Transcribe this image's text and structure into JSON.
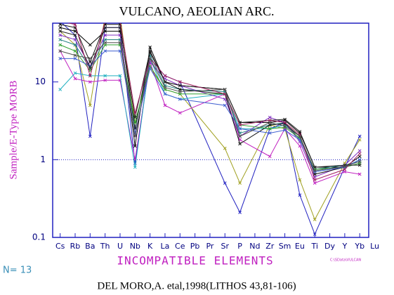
{
  "chart_data": {
    "type": "line",
    "title": "VULCANO, AEOLIAN ARC.",
    "ylabel": "Sample/E-Type MORB",
    "xlabel": "INCOMPATIBLE ELEMENTS",
    "log_y": true,
    "ylim": [
      0.1,
      57
    ],
    "yticks": [
      10,
      1,
      0.1
    ],
    "reference_line": 1,
    "xlim": [
      -0.5,
      20.6
    ],
    "xticks": [
      {
        "value": 0,
        "label": "Cs"
      },
      {
        "value": 1,
        "label": "Rb"
      },
      {
        "value": 2,
        "label": "Ba"
      },
      {
        "value": 3,
        "label": "Th"
      },
      {
        "value": 4,
        "label": "U"
      },
      {
        "value": 5,
        "label": "Nb"
      },
      {
        "value": 6,
        "label": "K"
      },
      {
        "value": 7,
        "label": "La"
      },
      {
        "value": 8,
        "label": "Ce"
      },
      {
        "value": 9,
        "label": "Pb"
      },
      {
        "value": 10,
        "label": "Pr"
      },
      {
        "value": 11,
        "label": "Sr"
      },
      {
        "value": 12,
        "label": "P"
      },
      {
        "value": 13,
        "label": "Nd"
      },
      {
        "value": 14,
        "label": "Zr"
      },
      {
        "value": 15,
        "label": "Sm"
      },
      {
        "value": 16,
        "label": "Eu"
      },
      {
        "value": 17,
        "label": "Ti"
      },
      {
        "value": 18,
        "label": "Dy"
      },
      {
        "value": 19,
        "label": "Y"
      },
      {
        "value": 20,
        "label": "Yb"
      },
      {
        "value": 21,
        "label": "Lu"
      }
    ],
    "x": [
      0,
      1,
      2,
      3,
      4,
      5,
      6,
      7,
      8,
      11,
      12,
      14,
      15,
      16,
      17,
      19,
      20
    ],
    "series": [
      {
        "color": "#2020c0",
        "values": [
          60,
          40,
          2,
          50,
          50,
          0.9,
          20,
          12,
          10,
          0.5,
          0.21,
          2.5,
          3,
          0.35,
          0.11,
          0.8,
          2.0
        ]
      },
      {
        "color": "#a0a020",
        "values": [
          45,
          30,
          5,
          70,
          70,
          3,
          15,
          8,
          7,
          1.4,
          0.5,
          2.8,
          2.5,
          0.55,
          0.17,
          0.9,
          1.8
        ]
      },
      {
        "color": "#c020c0",
        "values": [
          25,
          11,
          10,
          10.5,
          10.5,
          1.0,
          18,
          5,
          4,
          7,
          1.8,
          1.1,
          2.5,
          1.5,
          0.5,
          0.7,
          0.65
        ]
      },
      {
        "color": "#000000",
        "values": [
          50,
          45,
          30,
          45,
          45,
          1.5,
          28,
          10,
          9,
          8,
          3,
          3,
          3.2,
          2.2,
          0.8,
          0.8,
          0.9
        ]
      },
      {
        "color": "#20b0c0",
        "values": [
          8,
          13,
          12,
          12,
          12,
          0.8,
          20,
          7,
          6,
          7,
          2.5,
          2.5,
          2.8,
          2,
          0.7,
          0.8,
          1.0
        ]
      },
      {
        "color": "#208080",
        "values": [
          35,
          30,
          15,
          35,
          35,
          2.5,
          22,
          9,
          8,
          7.5,
          2.2,
          2.8,
          3,
          1.8,
          0.75,
          0.85,
          0.95
        ]
      },
      {
        "color": "#8030c0",
        "values": [
          40,
          35,
          16,
          40,
          40,
          2,
          18,
          11,
          9,
          6,
          2,
          3.5,
          3,
          1.7,
          0.6,
          0.85,
          1.3
        ]
      },
      {
        "color": "#101010",
        "values": [
          55,
          50,
          18,
          55,
          55,
          2.5,
          24,
          10,
          8,
          7,
          1.6,
          2.8,
          2.9,
          2,
          0.65,
          0.8,
          1.1
        ]
      },
      {
        "color": "#30a030",
        "values": [
          30,
          25,
          14,
          30,
          30,
          3,
          16,
          8,
          7,
          7,
          2.8,
          2.5,
          2.6,
          1.9,
          0.75,
          0.8,
          0.9
        ]
      },
      {
        "color": "#4060d0",
        "values": [
          20,
          20,
          16,
          25,
          25,
          2.2,
          15,
          7,
          6,
          5,
          2.5,
          2.2,
          2.4,
          1.8,
          0.7,
          0.8,
          1.0
        ]
      },
      {
        "color": "#202020",
        "values": [
          45,
          40,
          15,
          50,
          50,
          3.5,
          25,
          10,
          9,
          8,
          3,
          3.2,
          3.3,
          2.3,
          0.8,
          0.85,
          0.85
        ]
      },
      {
        "color": "#a02060",
        "values": [
          60,
          55,
          12,
          60,
          60,
          4,
          20,
          12,
          10,
          7,
          2.8,
          3.2,
          3,
          2.1,
          0.55,
          0.75,
          1.2
        ]
      },
      {
        "color": "#505050",
        "values": [
          25,
          22,
          20,
          32,
          32,
          2,
          20,
          8.5,
          7.5,
          8,
          2,
          3,
          2.7,
          2,
          0.72,
          0.82,
          0.95
        ]
      }
    ],
    "count_label": "N= 13",
    "file_note": "C:\\SData\\VULCAN",
    "citation": "DEL MORO,A. etal,1998(LITHOS 43,81-106)"
  }
}
